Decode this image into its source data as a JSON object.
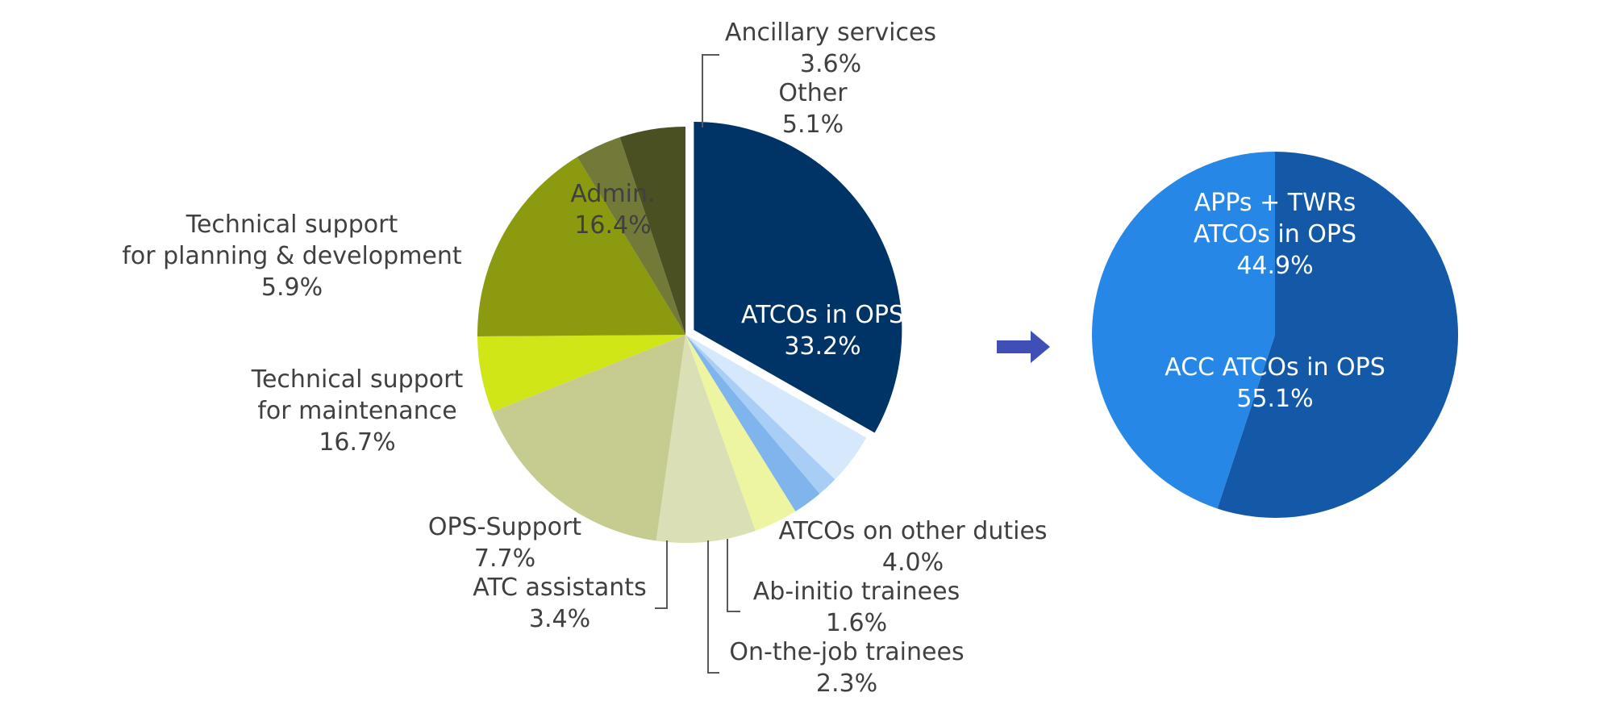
{
  "chart_data": [
    {
      "type": "pie",
      "title": "",
      "start_angle_deg": 90,
      "direction": "clockwise",
      "slices": [
        {
          "key": "atcos_ops",
          "label": [
            "ATCOs in OPS"
          ],
          "value": 33.2,
          "value_label": "33.2%",
          "color": "#003366",
          "exploded": true,
          "label_color": "light"
        },
        {
          "key": "atcos_other",
          "label": [
            "ATCOs on other duties"
          ],
          "value": 4.0,
          "value_label": "4.0%",
          "color": "#d6e8fb"
        },
        {
          "key": "ab_initio",
          "label": [
            "Ab-initio trainees"
          ],
          "value": 1.6,
          "value_label": "1.6%",
          "color": "#a9cef5"
        },
        {
          "key": "otj",
          "label": [
            "On-the-job trainees"
          ],
          "value": 2.3,
          "value_label": "2.3%",
          "color": "#7fb5ec"
        },
        {
          "key": "atc_assist",
          "label": [
            "ATC assistants"
          ],
          "value": 3.4,
          "value_label": "3.4%",
          "color": "#eef5a0"
        },
        {
          "key": "ops_support",
          "label": [
            "OPS-Support"
          ],
          "value": 7.7,
          "value_label": "7.7%",
          "color": "#dadfb5"
        },
        {
          "key": "tech_maint",
          "label": [
            "Technical support",
            "for maintenance"
          ],
          "value": 16.7,
          "value_label": "16.7%",
          "color": "#c6cc90"
        },
        {
          "key": "tech_plan",
          "label": [
            "Technical support",
            "for planning & development"
          ],
          "value": 5.9,
          "value_label": "5.9%",
          "color": "#d1e617"
        },
        {
          "key": "admin",
          "label": [
            "Admin."
          ],
          "value": 16.4,
          "value_label": "16.4%",
          "color": "#8b9a0e"
        },
        {
          "key": "ancillary",
          "label": [
            "Ancillary services"
          ],
          "value": 3.6,
          "value_label": "3.6%",
          "color": "#737a38"
        },
        {
          "key": "other",
          "label": [
            "Other"
          ],
          "value": 5.1,
          "value_label": "5.1%",
          "color": "#4b5022"
        }
      ]
    },
    {
      "type": "pie",
      "title": "",
      "start_angle_deg": 90,
      "direction": "clockwise",
      "slices": [
        {
          "key": "acc",
          "label": [
            "ACC ATCOs in OPS"
          ],
          "value": 55.1,
          "value_label": "55.1%",
          "color": "#1459a8",
          "label_color": "light"
        },
        {
          "key": "app_twr",
          "label": [
            "APPs + TWRs",
            "ATCOs in OPS"
          ],
          "value": 44.9,
          "value_label": "44.9%",
          "color": "#2787e6",
          "label_color": "light"
        }
      ]
    }
  ],
  "connector": {
    "icon": "right-arrow-icon",
    "color": "#3f4fb5"
  }
}
